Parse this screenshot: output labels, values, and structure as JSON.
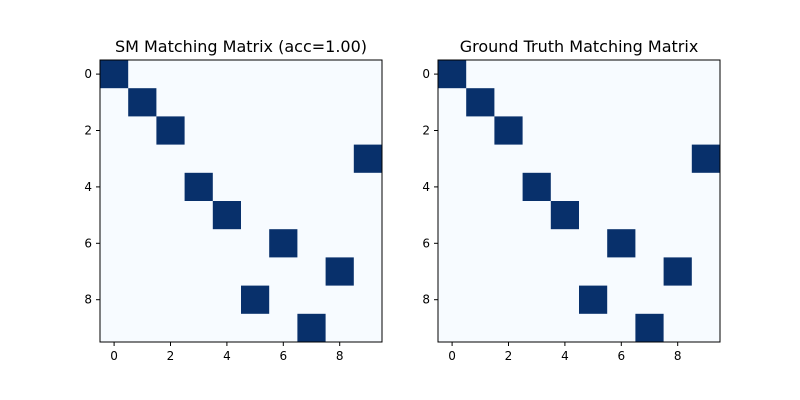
{
  "chart_data": [
    {
      "type": "heatmap",
      "title": "SM Matching Matrix (acc=1.00)",
      "rows": 10,
      "cols": 10,
      "matches": [
        [
          0,
          0
        ],
        [
          1,
          1
        ],
        [
          2,
          2
        ],
        [
          3,
          9
        ],
        [
          4,
          3
        ],
        [
          5,
          4
        ],
        [
          6,
          6
        ],
        [
          7,
          8
        ],
        [
          8,
          5
        ],
        [
          9,
          7
        ]
      ],
      "xticks": [
        0,
        2,
        4,
        6,
        8
      ],
      "yticks": [
        0,
        2,
        4,
        6,
        8
      ],
      "xlim": [
        -0.5,
        9.5
      ],
      "ylim": [
        9.5,
        -0.5
      ],
      "colormap": {
        "low": "#f7fbff",
        "high": "#08306b"
      }
    },
    {
      "type": "heatmap",
      "title": "Ground Truth Matching Matrix",
      "rows": 10,
      "cols": 10,
      "matches": [
        [
          0,
          0
        ],
        [
          1,
          1
        ],
        [
          2,
          2
        ],
        [
          3,
          9
        ],
        [
          4,
          3
        ],
        [
          5,
          4
        ],
        [
          6,
          6
        ],
        [
          7,
          8
        ],
        [
          8,
          5
        ],
        [
          9,
          7
        ]
      ],
      "xticks": [
        0,
        2,
        4,
        6,
        8
      ],
      "yticks": [
        0,
        2,
        4,
        6,
        8
      ],
      "xlim": [
        -0.5,
        9.5
      ],
      "ylim": [
        9.5,
        -0.5
      ],
      "colormap": {
        "low": "#f7fbff",
        "high": "#08306b"
      }
    }
  ]
}
